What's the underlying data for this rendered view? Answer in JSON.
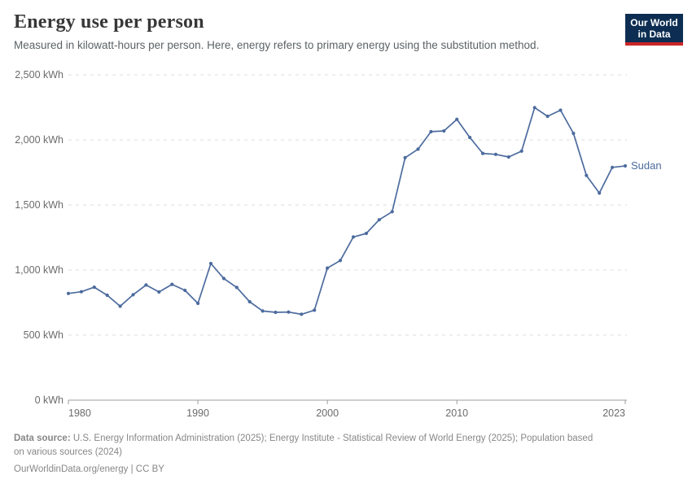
{
  "header": {
    "title": "Energy use per person",
    "subtitle": "Measured in kilowatt-hours per person. Here, energy refers to primary energy using the substitution method.",
    "logo": {
      "line1": "Our World",
      "line2": "in Data",
      "bg_color": "#0d2e52",
      "accent_color": "#cb2627"
    }
  },
  "chart_data": {
    "type": "line",
    "title": "Energy use per person",
    "unit": "kWh",
    "xlim": [
      1980,
      2023
    ],
    "ylim": [
      0,
      2500
    ],
    "grid": "horizontal-dashed",
    "legend_position": "end-of-line-label",
    "x": [
      1980,
      1981,
      1982,
      1983,
      1984,
      1985,
      1986,
      1987,
      1988,
      1989,
      1990,
      1991,
      1992,
      1993,
      1994,
      1995,
      1996,
      1997,
      1998,
      1999,
      2000,
      2001,
      2002,
      2003,
      2004,
      2005,
      2006,
      2007,
      2008,
      2009,
      2010,
      2011,
      2012,
      2013,
      2014,
      2015,
      2016,
      2017,
      2018,
      2019,
      2020,
      2021,
      2022,
      2023
    ],
    "series": [
      {
        "name": "Sudan",
        "color": "#4c6b9e",
        "values": [
          820,
          833,
          868,
          806,
          722,
          810,
          885,
          831,
          890,
          844,
          744,
          1050,
          935,
          866,
          756,
          685,
          675,
          677,
          660,
          691,
          1015,
          1073,
          1254,
          1281,
          1386,
          1448,
          1863,
          1929,
          2063,
          2069,
          2158,
          2019,
          1896,
          1889,
          1869,
          1914,
          2248,
          2181,
          2228,
          2050,
          1727,
          1591,
          1789,
          1800
        ]
      }
    ],
    "y_ticks": [
      {
        "value": 0,
        "label": "0 kWh"
      },
      {
        "value": 500,
        "label": "500 kWh"
      },
      {
        "value": 1000,
        "label": "1,000 kWh"
      },
      {
        "value": 1500,
        "label": "1,500 kWh"
      },
      {
        "value": 2000,
        "label": "2,000 kWh"
      },
      {
        "value": 2500,
        "label": "2,500 kWh"
      }
    ],
    "x_ticks": [
      {
        "value": 1980,
        "label": "1980",
        "align": "start"
      },
      {
        "value": 1990,
        "label": "1990",
        "align": "middle"
      },
      {
        "value": 2000,
        "label": "2000",
        "align": "middle"
      },
      {
        "value": 2010,
        "label": "2010",
        "align": "middle"
      },
      {
        "value": 2023,
        "label": "2023",
        "align": "end"
      }
    ]
  },
  "footer": {
    "source_label": "Data source:",
    "source_line1": " U.S. Energy Information Administration (2025); Energy Institute - Statistical Review of World Energy (2025); Population based",
    "source_line2": "on various sources (2024)",
    "citation": "OurWorldinData.org/energy | CC BY"
  }
}
